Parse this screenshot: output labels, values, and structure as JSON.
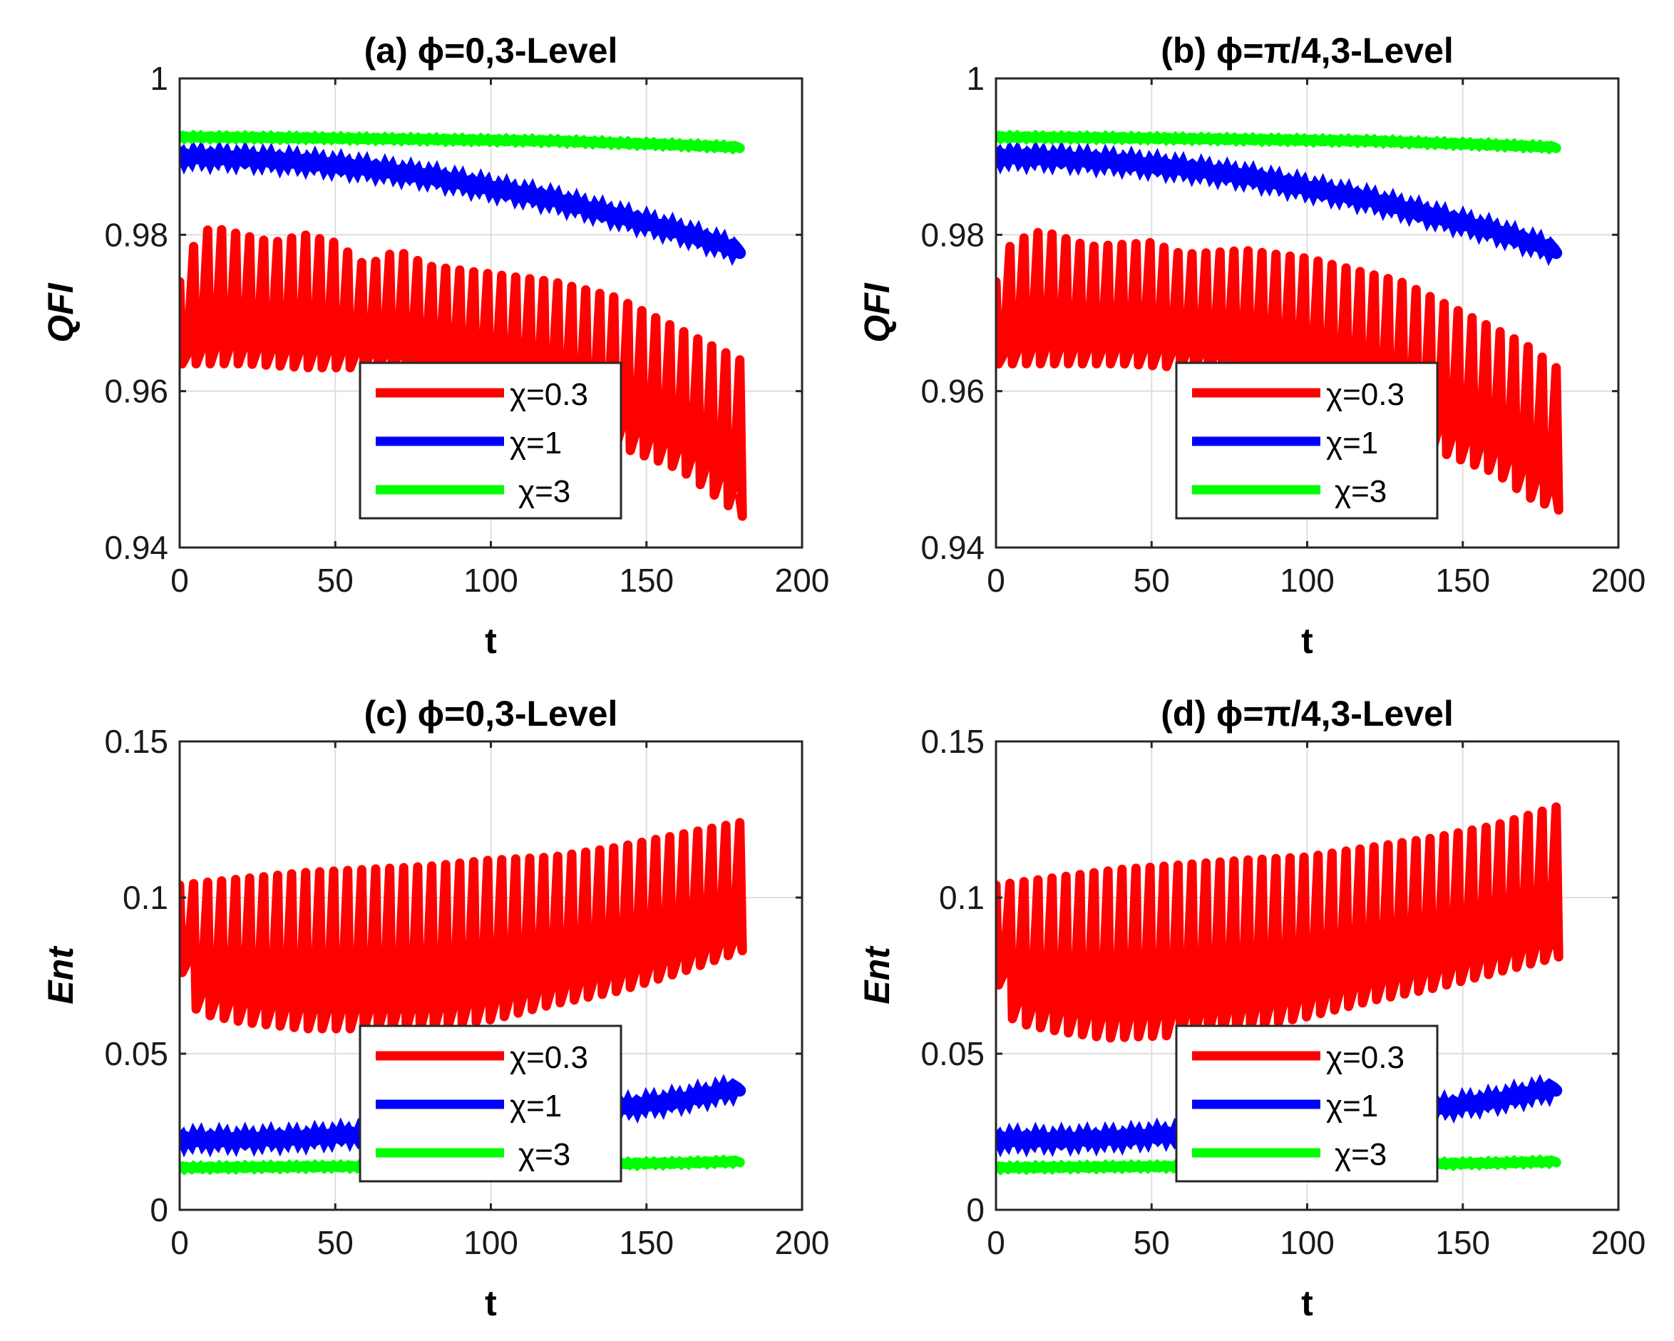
{
  "chart_data": [
    {
      "type": "line",
      "title": "(a) ϕ=0,3-Level",
      "xlabel": "t",
      "ylabel": "QFI",
      "xlim": [
        0,
        200
      ],
      "ylim": [
        0.94,
        1
      ],
      "xticks": [
        "0",
        "50",
        "100",
        "150",
        "200"
      ],
      "yticks": [
        "0.94",
        "0.96",
        "0.98",
        "1"
      ],
      "grid": true,
      "legend_position": "bottom-center",
      "series": [
        {
          "name": "χ=0.3",
          "color": "#ff0000",
          "band_upper": [
            [
              0,
              0.974
            ],
            [
              5,
              0.979
            ],
            [
              10,
              0.981
            ],
            [
              20,
              0.98
            ],
            [
              30,
              0.979
            ],
            [
              40,
              0.98
            ],
            [
              50,
              0.979
            ],
            [
              60,
              0.976
            ],
            [
              70,
              0.978
            ],
            [
              80,
              0.976
            ],
            [
              100,
              0.975
            ],
            [
              120,
              0.974
            ],
            [
              140,
              0.972
            ],
            [
              150,
              0.97
            ],
            [
              160,
              0.968
            ],
            [
              170,
              0.966
            ],
            [
              180,
              0.964
            ]
          ],
          "band_lower": [
            [
              0,
              0.9635
            ],
            [
              20,
              0.9635
            ],
            [
              40,
              0.963
            ],
            [
              60,
              0.963
            ],
            [
              80,
              0.962
            ],
            [
              100,
              0.9595
            ],
            [
              120,
              0.957
            ],
            [
              140,
              0.953
            ],
            [
              160,
              0.95
            ],
            [
              170,
              0.947
            ],
            [
              180,
              0.944
            ]
          ]
        },
        {
          "name": "χ=1",
          "color": "#0000ff",
          "x": [
            0,
            20,
            40,
            60,
            80,
            100,
            120,
            140,
            160,
            180
          ],
          "y": [
            0.99,
            0.9898,
            0.9893,
            0.9885,
            0.9875,
            0.986,
            0.9845,
            0.9825,
            0.9805,
            0.978
          ]
        },
        {
          "name": "χ=3",
          "color": "#00ff00",
          "x": [
            0,
            40,
            80,
            120,
            160,
            180
          ],
          "y": [
            0.9925,
            0.9924,
            0.9922,
            0.992,
            0.9915,
            0.9912
          ]
        }
      ]
    },
    {
      "type": "line",
      "title": "(b) ϕ=π/4,3-Level",
      "xlabel": "t",
      "ylabel": "QFI",
      "xlim": [
        0,
        200
      ],
      "ylim": [
        0.94,
        1
      ],
      "xticks": [
        "0",
        "50",
        "100",
        "150",
        "200"
      ],
      "yticks": [
        "0.94",
        "0.96",
        "0.98",
        "1"
      ],
      "grid": true,
      "legend_position": "bottom-center",
      "series": [
        {
          "name": "χ=0.3",
          "color": "#ff0000",
          "band_upper": [
            [
              0,
              0.974
            ],
            [
              5,
              0.979
            ],
            [
              15,
              0.9805
            ],
            [
              30,
              0.9785
            ],
            [
              50,
              0.979
            ],
            [
              60,
              0.9775
            ],
            [
              80,
              0.978
            ],
            [
              100,
              0.977
            ],
            [
              120,
              0.975
            ],
            [
              130,
              0.974
            ],
            [
              140,
              0.972
            ],
            [
              150,
              0.97
            ],
            [
              160,
              0.968
            ],
            [
              170,
              0.966
            ],
            [
              180,
              0.963
            ]
          ],
          "band_lower": [
            [
              0,
              0.9635
            ],
            [
              20,
              0.9635
            ],
            [
              40,
              0.9635
            ],
            [
              60,
              0.963
            ],
            [
              80,
              0.962
            ],
            [
              100,
              0.9595
            ],
            [
              120,
              0.9565
            ],
            [
              140,
              0.9525
            ],
            [
              160,
              0.9495
            ],
            [
              170,
              0.9465
            ],
            [
              180,
              0.9448
            ]
          ]
        },
        {
          "name": "χ=1",
          "color": "#0000ff",
          "x": [
            0,
            20,
            40,
            60,
            80,
            100,
            120,
            140,
            160,
            180
          ],
          "y": [
            0.99,
            0.9898,
            0.9893,
            0.9885,
            0.9875,
            0.986,
            0.9845,
            0.9825,
            0.9805,
            0.978
          ]
        },
        {
          "name": "χ=3",
          "color": "#00ff00",
          "x": [
            0,
            40,
            80,
            120,
            160,
            180
          ],
          "y": [
            0.9925,
            0.9924,
            0.9922,
            0.992,
            0.9915,
            0.9912
          ]
        }
      ]
    },
    {
      "type": "line",
      "title": "(c) ϕ=0,3-Level",
      "xlabel": "t",
      "ylabel": "Ent",
      "xlim": [
        0,
        200
      ],
      "ylim": [
        0,
        0.15
      ],
      "xticks": [
        "0",
        "50",
        "100",
        "150",
        "200"
      ],
      "yticks": [
        "0",
        "0.05",
        "0.1",
        "0.15"
      ],
      "grid": true,
      "legend_position": "bottom-center",
      "series": [
        {
          "name": "χ=0.3",
          "color": "#ff0000",
          "band_upper": [
            [
              0,
              0.104
            ],
            [
              40,
              0.108
            ],
            [
              80,
              0.11
            ],
            [
              100,
              0.112
            ],
            [
              120,
              0.113
            ],
            [
              140,
              0.116
            ],
            [
              160,
              0.12
            ],
            [
              180,
              0.124
            ]
          ],
          "band_lower": [
            [
              0,
              0.076
            ],
            [
              5,
              0.063
            ],
            [
              20,
              0.06
            ],
            [
              40,
              0.058
            ],
            [
              60,
              0.058
            ],
            [
              80,
              0.058
            ],
            [
              100,
              0.061
            ],
            [
              120,
              0.066
            ],
            [
              140,
              0.07
            ],
            [
              160,
              0.076
            ],
            [
              180,
              0.083
            ]
          ]
        },
        {
          "name": "χ=1",
          "color": "#0000ff",
          "x": [
            0,
            20,
            40,
            60,
            80,
            100,
            120,
            140,
            160,
            180
          ],
          "y": [
            0.0225,
            0.0225,
            0.023,
            0.0245,
            0.026,
            0.028,
            0.0305,
            0.0325,
            0.035,
            0.039
          ]
        },
        {
          "name": "χ=3",
          "color": "#00ff00",
          "x": [
            0,
            40,
            80,
            120,
            160,
            180
          ],
          "y": [
            0.0135,
            0.0138,
            0.014,
            0.0145,
            0.015,
            0.0155
          ]
        }
      ]
    },
    {
      "type": "line",
      "title": "(d) ϕ=π/4,3-Level",
      "xlabel": "t",
      "ylabel": "Ent",
      "xlim": [
        0,
        200
      ],
      "ylim": [
        0,
        0.15
      ],
      "xticks": [
        "0",
        "50",
        "100",
        "150",
        "200"
      ],
      "yticks": [
        "0",
        "0.05",
        "0.1",
        "0.15"
      ],
      "grid": true,
      "legend_position": "bottom-center",
      "series": [
        {
          "name": "χ=0.3",
          "color": "#ff0000",
          "band_upper": [
            [
              0,
              0.104
            ],
            [
              40,
              0.109
            ],
            [
              80,
              0.112
            ],
            [
              100,
              0.113
            ],
            [
              120,
              0.116
            ],
            [
              140,
              0.119
            ],
            [
              160,
              0.123
            ],
            [
              180,
              0.129
            ]
          ],
          "band_lower": [
            [
              0,
              0.072
            ],
            [
              5,
              0.06
            ],
            [
              20,
              0.057
            ],
            [
              35,
              0.055
            ],
            [
              60,
              0.056
            ],
            [
              80,
              0.058
            ],
            [
              100,
              0.062
            ],
            [
              120,
              0.067
            ],
            [
              140,
              0.071
            ],
            [
              160,
              0.076
            ],
            [
              180,
              0.081
            ]
          ]
        },
        {
          "name": "χ=1",
          "color": "#0000ff",
          "x": [
            0,
            20,
            40,
            60,
            80,
            100,
            120,
            140,
            160,
            180
          ],
          "y": [
            0.0225,
            0.0225,
            0.023,
            0.0245,
            0.026,
            0.028,
            0.0305,
            0.0325,
            0.035,
            0.039
          ]
        },
        {
          "name": "χ=3",
          "color": "#00ff00",
          "x": [
            0,
            40,
            80,
            120,
            160,
            180
          ],
          "y": [
            0.0135,
            0.0138,
            0.014,
            0.0145,
            0.015,
            0.0155
          ]
        }
      ]
    }
  ]
}
